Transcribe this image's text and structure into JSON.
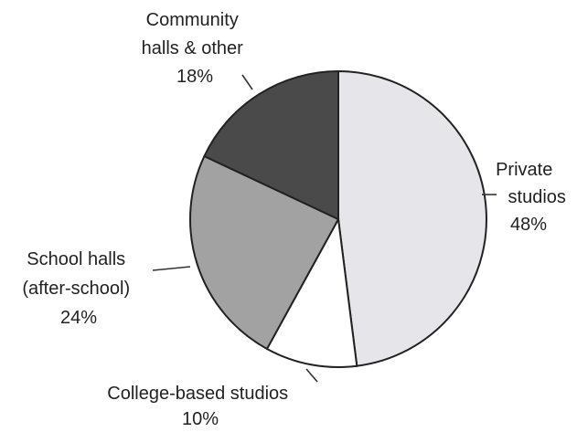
{
  "chart_data": {
    "type": "pie",
    "slices": [
      {
        "label_lines": [
          "Private",
          "studios"
        ],
        "value": 48,
        "value_label": "48%",
        "color": "#e6e6ea"
      },
      {
        "label_lines": [
          "College-based studios"
        ],
        "value": 10,
        "value_label": "10%",
        "color": "#ffffff"
      },
      {
        "label_lines": [
          "School halls",
          "(after-school)"
        ],
        "value": 24,
        "value_label": "24%",
        "color": "#a2a2a2"
      },
      {
        "label_lines": [
          "Community",
          "halls & other"
        ],
        "value": 18,
        "value_label": "18%",
        "color": "#4a4a4a"
      }
    ],
    "start": "12 o'clock",
    "direction": "clockwise"
  }
}
